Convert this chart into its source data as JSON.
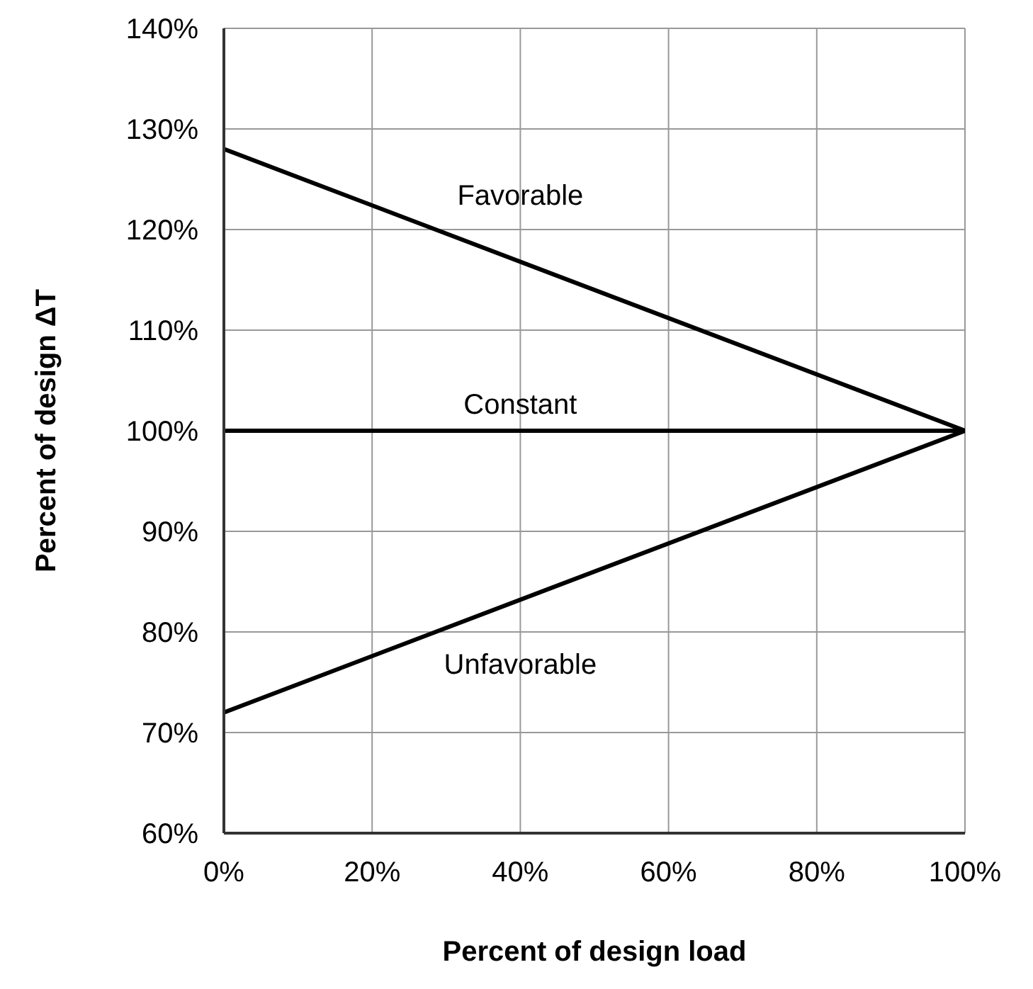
{
  "chart_data": {
    "type": "line",
    "xlabel": "Percent of design load",
    "ylabel": "Percent of design  ΔT",
    "x": [
      0,
      100
    ],
    "series": [
      {
        "name": "Favorable",
        "color": "#000000",
        "values": [
          128,
          100
        ]
      },
      {
        "name": "Constant",
        "color": "#000000",
        "values": [
          100,
          100
        ]
      },
      {
        "name": "Unfavorable",
        "color": "#000000",
        "values": [
          72,
          100
        ]
      }
    ],
    "xlim": [
      0,
      100
    ],
    "xticks": [
      {
        "value": 0,
        "label": "0%"
      },
      {
        "value": 20,
        "label": "20%"
      },
      {
        "value": 40,
        "label": "40%"
      },
      {
        "value": 60,
        "label": "60%"
      },
      {
        "value": 80,
        "label": "80%"
      },
      {
        "value": 100,
        "label": "100%"
      }
    ],
    "ylim": [
      60,
      140
    ],
    "yticks": [
      {
        "value": 60,
        "label": "60%"
      },
      {
        "value": 70,
        "label": "70%"
      },
      {
        "value": 80,
        "label": "80%"
      },
      {
        "value": 90,
        "label": "90%"
      },
      {
        "value": 100,
        "label": "100%"
      },
      {
        "value": 110,
        "label": "110%"
      },
      {
        "value": 120,
        "label": "120%"
      },
      {
        "value": 130,
        "label": "130%"
      },
      {
        "value": 140,
        "label": "140%"
      }
    ],
    "grid": true,
    "marker": "none",
    "line_style": "solid",
    "legend": false
  }
}
